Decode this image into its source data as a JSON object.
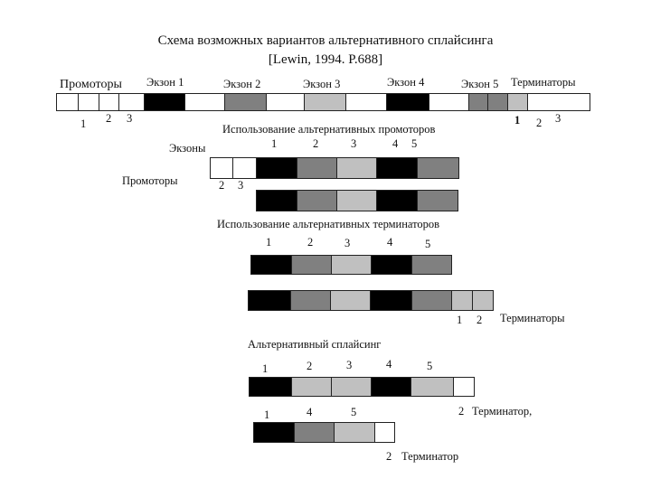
{
  "title": {
    "line1": "Схема возможных вариантов альтернативного сплайсинга",
    "line2": "[Lewin, 1994. P.688]"
  },
  "gene": {
    "promoters_label": "Промоторы",
    "terminators_label": "Терминаторы",
    "exon_labels": [
      "Экзон 1",
      "Экзон 2",
      "Экзон 3",
      "Экзон 4",
      "Экзон 5"
    ],
    "promoter_numbers": [
      "1",
      "2",
      "3"
    ],
    "terminator_numbers": [
      "1",
      "2",
      "3"
    ]
  },
  "section_promoters": {
    "heading": "Использование альтернативных промоторов",
    "exons_label": "Экзоны",
    "exon_numbers": [
      "1",
      "2",
      "3",
      "4",
      "5"
    ],
    "promoters_label": "Промоторы",
    "promoter_numbers": [
      "2",
      "3"
    ]
  },
  "section_terminators": {
    "heading": "Использование альтернативных  терминаторов",
    "exon_numbers": [
      "1",
      "2",
      "3",
      "4",
      "5"
    ],
    "terminator_numbers": [
      "1",
      "2"
    ],
    "terminators_label": "Терминаторы"
  },
  "section_splicing": {
    "heading": "Альтернативный сплайсинг",
    "row1_numbers": [
      "1",
      "2",
      "3",
      "4",
      "5"
    ],
    "row2_numbers": [
      "1",
      "4",
      "5"
    ],
    "terminator1_number": "2",
    "terminator1_label": "Терминатор,",
    "terminator2_number": "2",
    "terminator2_label": "Терминатор"
  },
  "fill_colors": {
    "exon_dark": "#000000",
    "exon_gray": "#808080",
    "exon_light": "#c0c0c0",
    "blank": "#ffffff"
  }
}
